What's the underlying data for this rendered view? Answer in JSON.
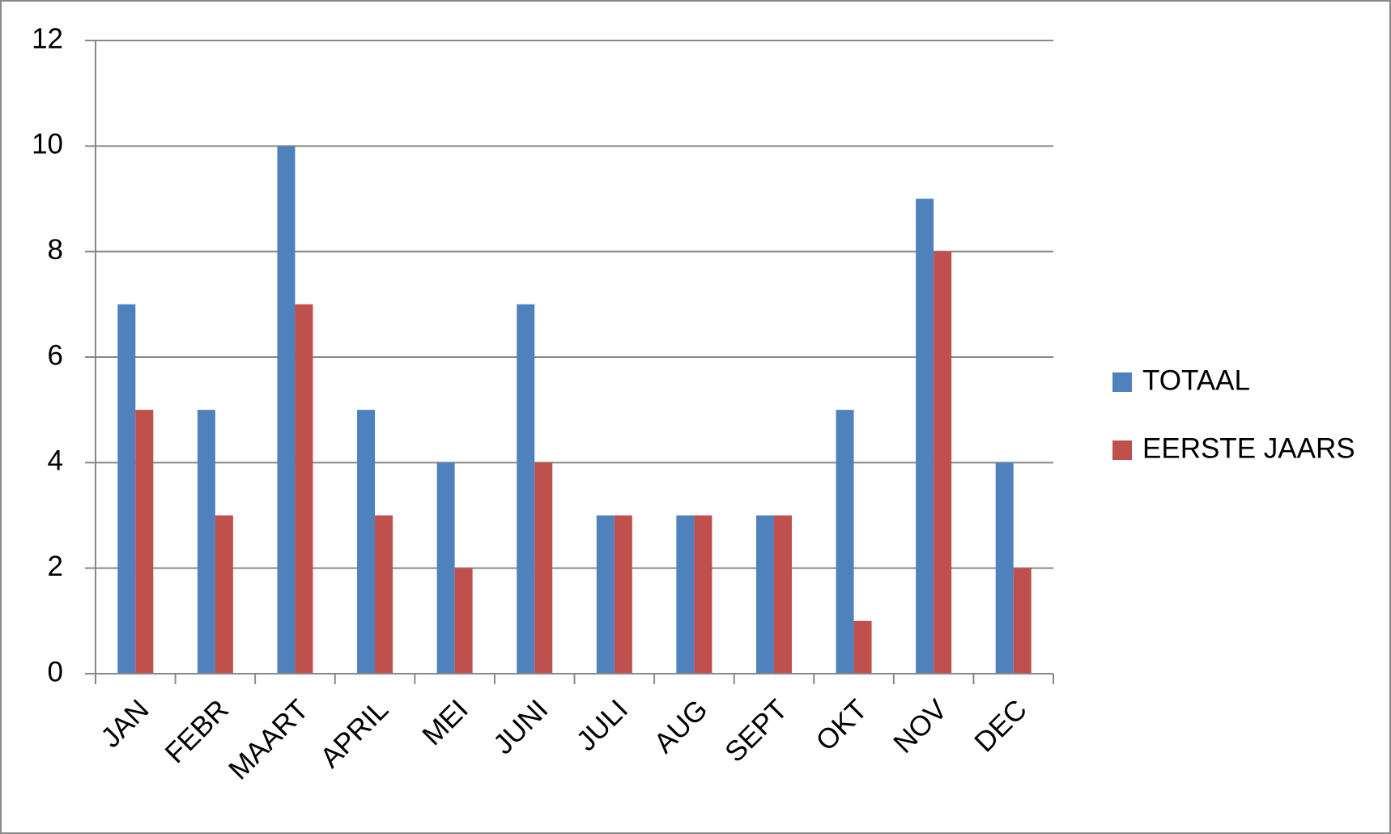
{
  "chart_data": {
    "type": "bar",
    "categories": [
      "JAN",
      "FEBR",
      "MAART",
      "APRIL",
      "MEI",
      "JUNI",
      "JULI",
      "AUG",
      "SEPT",
      "OKT",
      "NOV",
      "DEC"
    ],
    "series": [
      {
        "name": "TOTAAL",
        "color": "#4f81bd",
        "values": [
          7,
          5,
          10,
          5,
          4,
          7,
          3,
          3,
          3,
          5,
          9,
          4
        ]
      },
      {
        "name": "EERSTE JAARS",
        "color": "#c0504d",
        "values": [
          5,
          3,
          7,
          3,
          2,
          4,
          3,
          3,
          3,
          1,
          8,
          2
        ]
      }
    ],
    "ylim": [
      0,
      12
    ],
    "yticks": [
      0,
      2,
      4,
      6,
      8,
      10,
      12
    ],
    "grid": true,
    "legend": "right"
  }
}
